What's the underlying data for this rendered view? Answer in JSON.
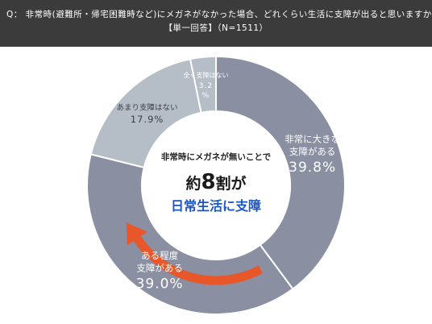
{
  "header": {
    "question": "Q： 非常時(避難所・帰宅困難時など)にメガネがなかった場合、どれくらい生活に支障が出ると思いますか？",
    "subtitle": "【単一回答】（N=1511）"
  },
  "chart_data": {
    "type": "pie",
    "donut": true,
    "categories": [
      "非常に大きな支障がある",
      "ある程度支障がある",
      "あまり支障はない",
      "全く支障はない"
    ],
    "values": [
      39.8,
      39.0,
      17.9,
      3.2
    ],
    "value_labels": [
      "39.8%",
      "39.0%",
      "17.9%",
      "3.2\n%"
    ],
    "label_lines": [
      [
        "非常に大きな",
        "支障がある"
      ],
      [
        "ある程度",
        "支障がある"
      ],
      [
        "あまり支障はない"
      ],
      [
        "全く支障はない"
      ]
    ],
    "colors": [
      "#8a8fa1",
      "#8a8fa1",
      "#b5bec6",
      "#b5bec6"
    ],
    "label_colors": [
      "#ffffff",
      "#ffffff",
      "#3a3f4a",
      "#ffffff"
    ],
    "start_angle_deg": 0,
    "direction": "clockwise"
  },
  "center": {
    "line1": "非常時にメガネが無いことで",
    "line2_prefix": "約",
    "line2_number": "8",
    "line2_suffix": "割が",
    "line3": "日常生活に支障"
  },
  "colors": {
    "header_bg": "#3b3b3b",
    "accent_blue": "#1a56c4",
    "arrow": "#e8572a"
  }
}
